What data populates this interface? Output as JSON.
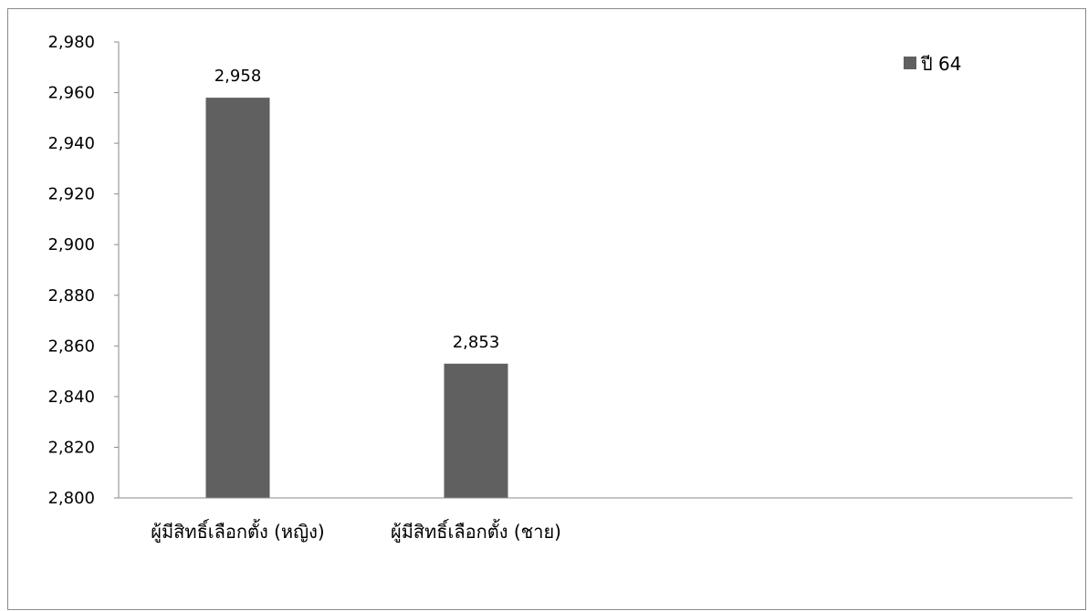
{
  "chart_data": {
    "type": "bar",
    "categories": [
      "ผู้มีสิทธิ์เลือกตั้ง (หญิง)",
      "ผู้มีสิทธิ์เลือกตั้ง (ชาย)"
    ],
    "series": [
      {
        "name": "ปี 64",
        "values": [
          2958,
          2853
        ]
      }
    ],
    "data_labels": [
      "2,958",
      "2,853"
    ],
    "y_ticks": [
      "2,800",
      "2,820",
      "2,840",
      "2,860",
      "2,880",
      "2,900",
      "2,920",
      "2,940",
      "2,960",
      "2,980"
    ],
    "ylim": [
      2800,
      2980
    ],
    "legend_position": "top-right",
    "grid": false,
    "bar_color": "#606060"
  }
}
